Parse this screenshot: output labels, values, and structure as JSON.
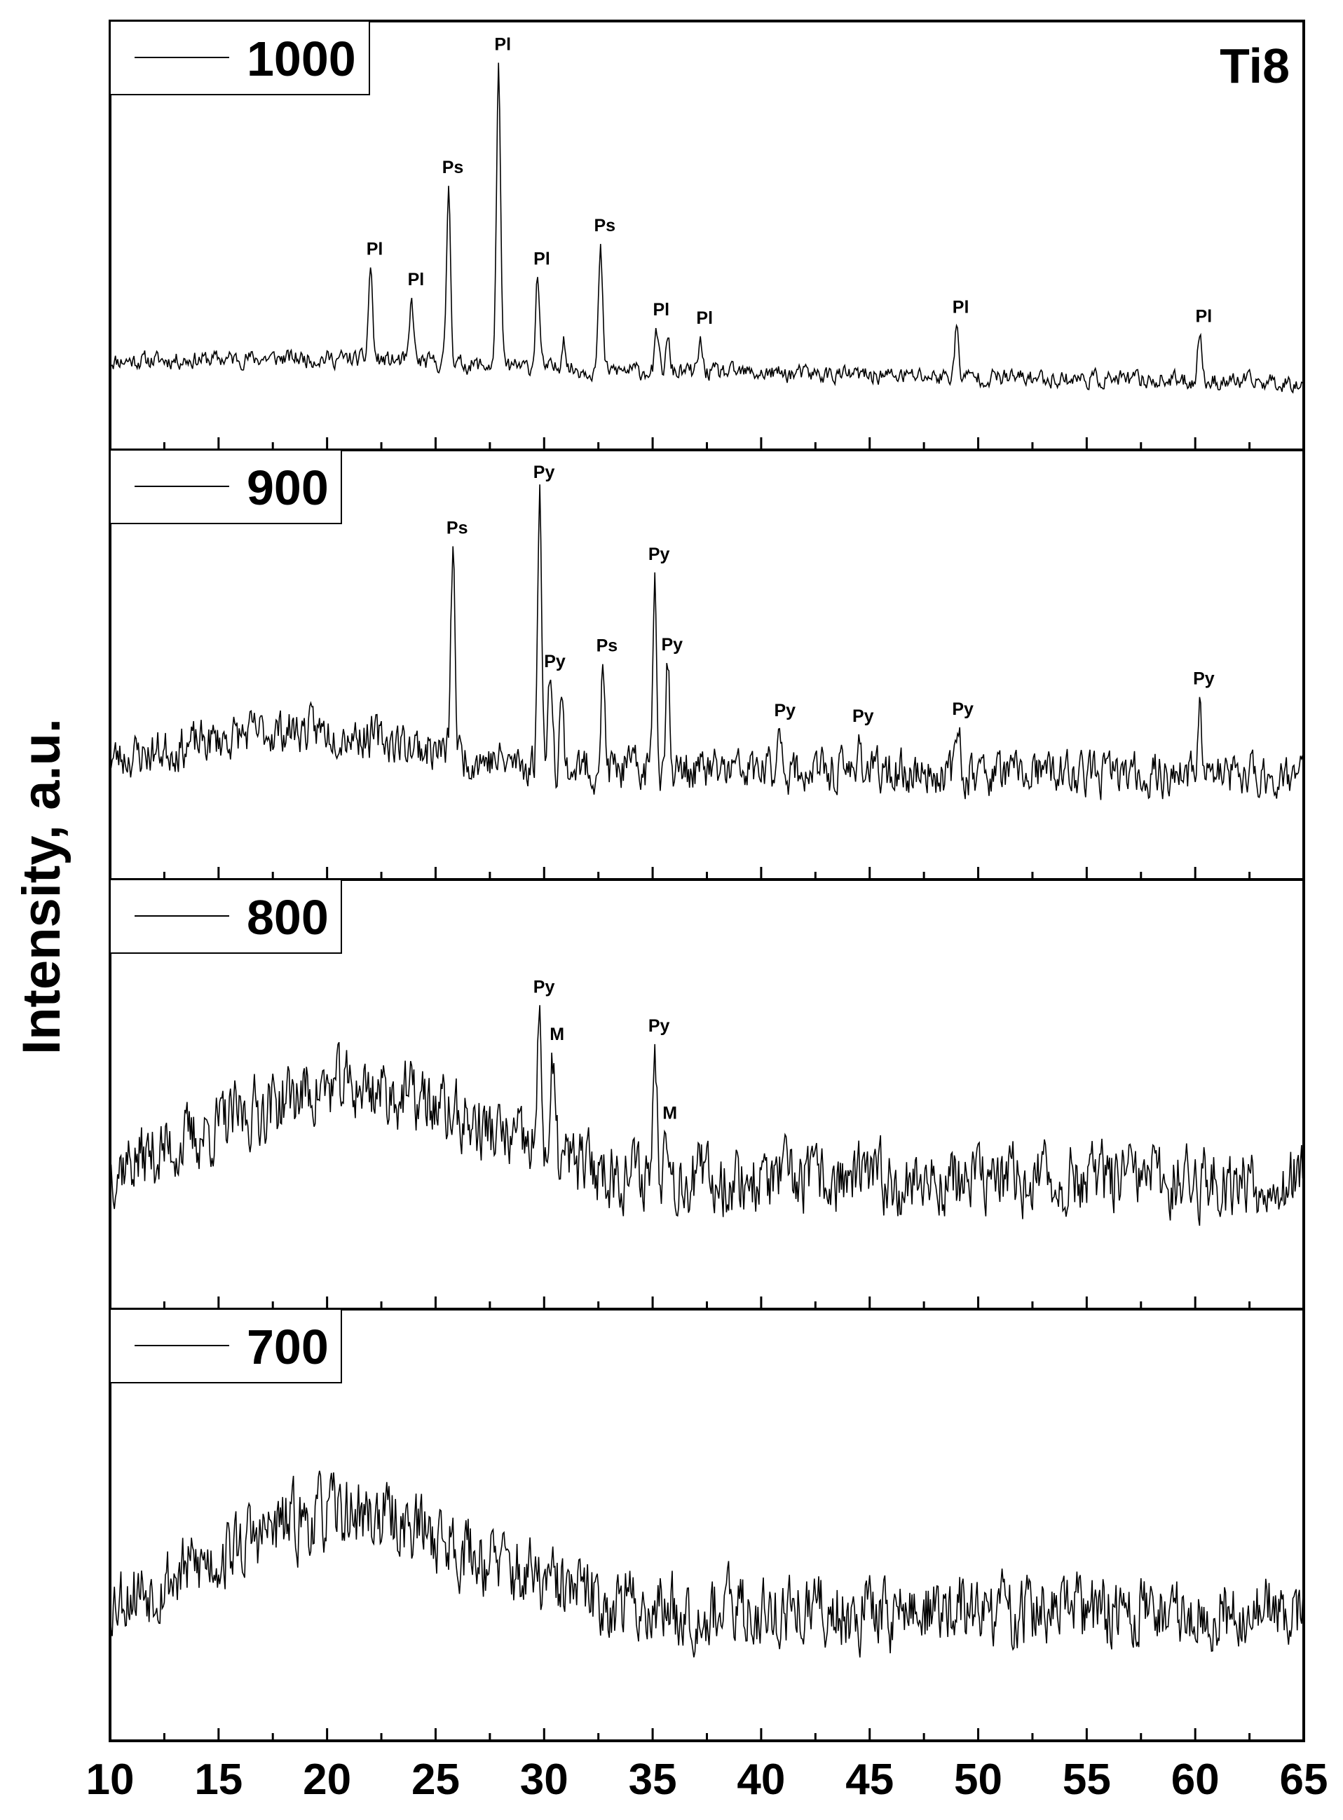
{
  "figure": {
    "sample_label": "Ti8",
    "ylabel": "Intensity, a.u."
  },
  "chart_data": {
    "type": "line",
    "ylabel": "Intensity, a.u.",
    "xlabel": "",
    "xlim": [
      10,
      65
    ],
    "x_ticks": [
      10,
      15,
      20,
      25,
      30,
      35,
      40,
      45,
      50,
      55,
      60,
      65
    ],
    "x_tick_labels": [
      "10",
      "15",
      "20",
      "25",
      "30",
      "35",
      "40",
      "45",
      "50",
      "55",
      "60",
      "65"
    ],
    "grid": false,
    "legend_placement": "top-left of each panel",
    "annotations": [
      {
        "text": "Ti8",
        "placement": "top-right"
      }
    ],
    "series": [
      {
        "name": "1000",
        "seed": 11,
        "baseline": 0.16,
        "hump_amp": 0.02,
        "hump_center": 20,
        "hump_width": 8,
        "noise": 0.04,
        "slope": -0.001,
        "peaks": [
          {
            "x": 22.0,
            "h": 0.25,
            "label": "Pl"
          },
          {
            "x": 23.9,
            "h": 0.16,
            "label": "Pl"
          },
          {
            "x": 25.6,
            "h": 0.47,
            "label": "Ps"
          },
          {
            "x": 27.9,
            "h": 0.81,
            "label": "Pl"
          },
          {
            "x": 29.7,
            "h": 0.25,
            "label": "Pl"
          },
          {
            "x": 30.9,
            "h": 0.09,
            "label": ""
          },
          {
            "x": 32.6,
            "h": 0.32,
            "label": "Ps"
          },
          {
            "x": 35.2,
            "h": 0.1,
            "label": "Pl"
          },
          {
            "x": 35.7,
            "h": 0.08,
            "label": ""
          },
          {
            "x": 37.2,
            "h": 0.08,
            "label": "Pl"
          },
          {
            "x": 49.0,
            "h": 0.13,
            "label": "Pl"
          },
          {
            "x": 60.2,
            "h": 0.13,
            "label": "Pl"
          }
        ]
      },
      {
        "name": "900",
        "seed": 23,
        "baseline": 0.23,
        "hump_amp": 0.1,
        "hump_center": 19,
        "hump_width": 7,
        "noise": 0.1,
        "slope": -0.0005,
        "peaks": [
          {
            "x": 25.8,
            "h": 0.55,
            "label": "Ps"
          },
          {
            "x": 29.8,
            "h": 0.75,
            "label": "Py"
          },
          {
            "x": 30.3,
            "h": 0.28,
            "label": "Py"
          },
          {
            "x": 30.8,
            "h": 0.18,
            "label": ""
          },
          {
            "x": 32.7,
            "h": 0.25,
            "label": "Ps"
          },
          {
            "x": 35.1,
            "h": 0.52,
            "label": "Py"
          },
          {
            "x": 35.7,
            "h": 0.3,
            "label": "Py"
          },
          {
            "x": 40.9,
            "h": 0.12,
            "label": "Py"
          },
          {
            "x": 44.5,
            "h": 0.1,
            "label": "Py"
          },
          {
            "x": 49.1,
            "h": 0.12,
            "label": "Py"
          },
          {
            "x": 60.2,
            "h": 0.22,
            "label": "Py"
          }
        ]
      },
      {
        "name": "800",
        "seed": 37,
        "baseline": 0.27,
        "hump_amp": 0.25,
        "hump_center": 21,
        "hump_width": 8,
        "noise": 0.16,
        "slope": 0.0,
        "peaks": [
          {
            "x": 29.8,
            "h": 0.38,
            "label": "Py"
          },
          {
            "x": 30.4,
            "h": 0.22,
            "label": "M"
          },
          {
            "x": 35.1,
            "h": 0.34,
            "label": "Py"
          },
          {
            "x": 35.6,
            "h": 0.22,
            "label": "M"
          }
        ]
      },
      {
        "name": "700",
        "seed": 53,
        "baseline": 0.27,
        "hump_amp": 0.26,
        "hump_center": 21,
        "hump_width": 8,
        "noise": 0.17,
        "slope": 0.0,
        "peaks": []
      }
    ]
  }
}
